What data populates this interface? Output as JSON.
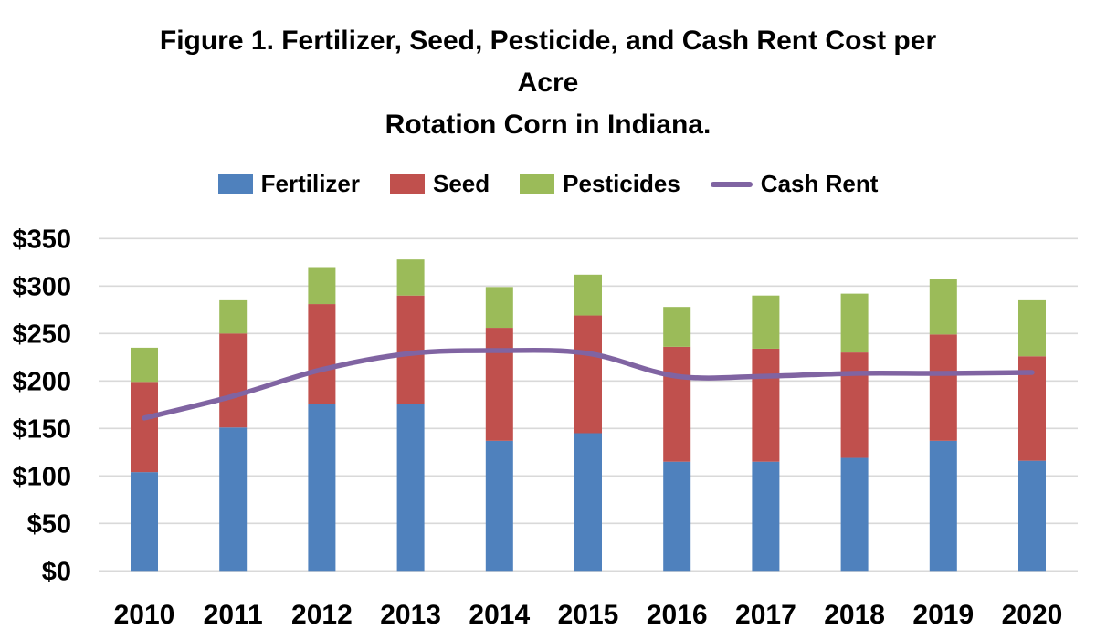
{
  "title": {
    "lines": [
      "Figure 1. Fertilizer, Seed, Pesticide, and Cash Rent Cost per",
      "Acre",
      "Rotation Corn in Indiana."
    ]
  },
  "legend": {
    "items": [
      {
        "label": "Fertilizer",
        "marker": "swatch",
        "color": "#4F81BD"
      },
      {
        "label": "Seed",
        "marker": "swatch",
        "color": "#C0504D"
      },
      {
        "label": "Pesticides",
        "marker": "swatch",
        "color": "#9BBB59"
      },
      {
        "label": "Cash Rent",
        "marker": "line",
        "color": "#8064A2"
      }
    ]
  },
  "colors": {
    "fertilizer": "#4F81BD",
    "seed": "#C0504D",
    "pesticides": "#9BBB59",
    "cash_rent": "#8064A2",
    "gridline": "#D9D9D9",
    "text": "#000000",
    "background": "#FFFFFF"
  },
  "chart_data": {
    "type": "bar",
    "subtype": "stacked-bar-with-line",
    "title": "Figure 1. Fertilizer, Seed, Pesticide, and Cash Rent Cost per Acre Rotation Corn in Indiana.",
    "xlabel": "",
    "ylabel": "",
    "categories": [
      "2010",
      "2011",
      "2012",
      "2013",
      "2014",
      "2015",
      "2016",
      "2017",
      "2018",
      "2019",
      "2020"
    ],
    "series": [
      {
        "name": "Fertilizer",
        "type": "bar",
        "color": "#4F81BD",
        "values": [
          104,
          151,
          176,
          176,
          137,
          145,
          115,
          115,
          119,
          137,
          116
        ]
      },
      {
        "name": "Seed",
        "type": "bar",
        "color": "#C0504D",
        "values": [
          95,
          99,
          105,
          114,
          119,
          124,
          121,
          119,
          111,
          112,
          110
        ]
      },
      {
        "name": "Pesticides",
        "type": "bar",
        "color": "#9BBB59",
        "values": [
          36,
          35,
          39,
          38,
          43,
          43,
          42,
          56,
          62,
          58,
          59
        ]
      },
      {
        "name": "Cash Rent",
        "type": "line",
        "color": "#8064A2",
        "values": [
          161,
          184,
          212,
          229,
          232,
          229,
          205,
          205,
          208,
          208,
          209
        ]
      }
    ],
    "stacked_totals": [
      235,
      285,
      320,
      328,
      299,
      312,
      278,
      290,
      292,
      307,
      285
    ],
    "y_ticks": [
      {
        "value": 0,
        "label": "$0"
      },
      {
        "value": 50,
        "label": "$50"
      },
      {
        "value": 100,
        "label": "$100"
      },
      {
        "value": 150,
        "label": "$150"
      },
      {
        "value": 200,
        "label": "$200"
      },
      {
        "value": 250,
        "label": "$250"
      },
      {
        "value": 300,
        "label": "$300"
      },
      {
        "value": 350,
        "label": "$350"
      }
    ],
    "ylim": [
      0,
      350
    ],
    "grid": true,
    "legend_position": "top",
    "bar_stack_order_bottom_to_top": [
      "Fertilizer",
      "Seed",
      "Pesticides"
    ]
  }
}
